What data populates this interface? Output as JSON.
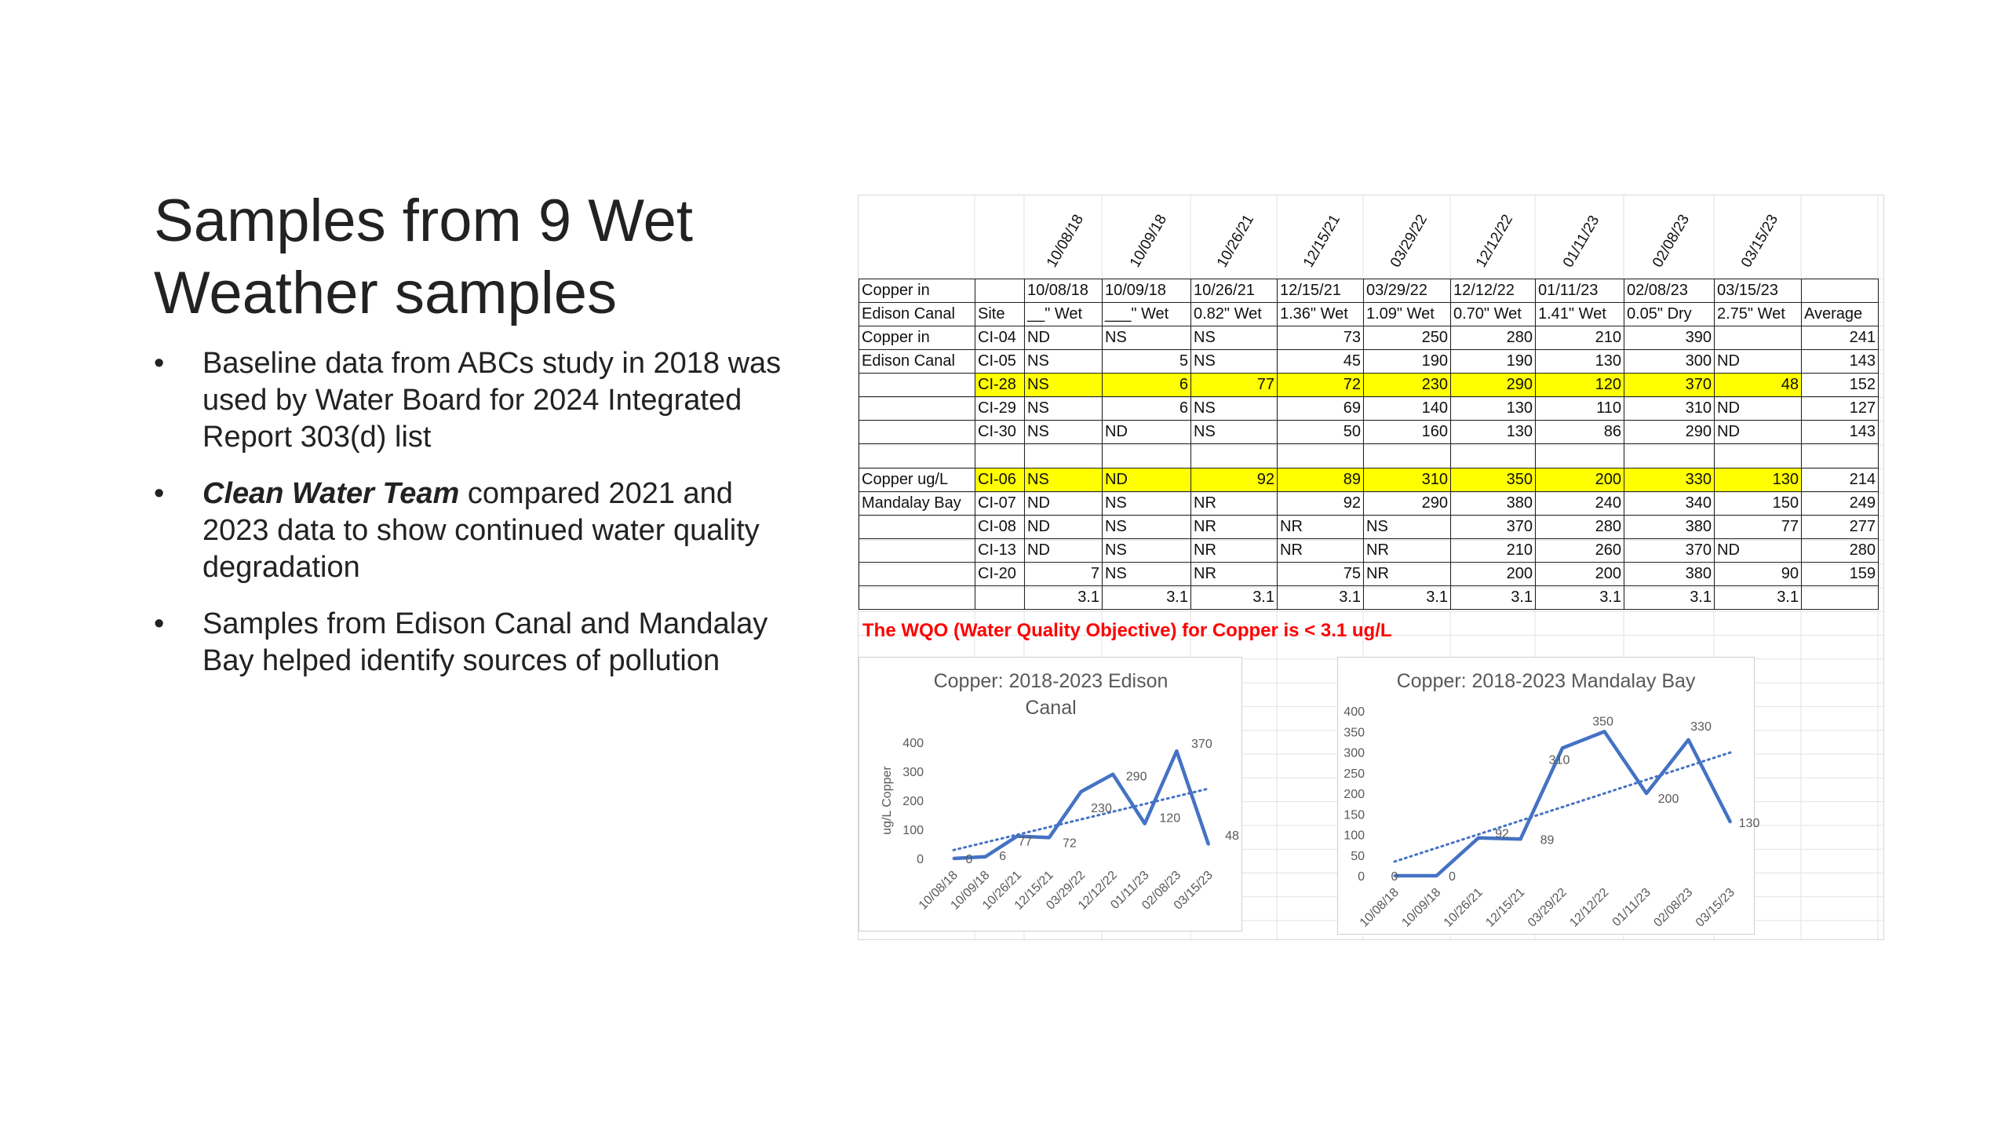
{
  "slide": {
    "title_line1": "Samples from 9 Wet",
    "title_line2": "Weather samples",
    "bullets": [
      {
        "dot": "•",
        "pre": "",
        "bold": "",
        "text": "Baseline data from ABCs study in 2018 was used by Water Board for 2024 Integrated Report 303(d) list"
      },
      {
        "dot": "•",
        "pre": "",
        "bold": "Clean Water Team",
        "text": " compared 2021 and 2023 data to show continued water quality degradation"
      },
      {
        "dot": "•",
        "pre": "",
        "bold": "",
        "text": "Samples from Edison Canal and Mandalay Bay helped identify sources of pollution"
      }
    ]
  },
  "table": {
    "rotated_dates": [
      "10/08/18",
      "10/09/18",
      "10/26/21",
      "12/15/21",
      "03/29/22",
      "12/12/22",
      "01/11/23",
      "02/08/23",
      "03/15/23"
    ],
    "header1": [
      "Copper in",
      "",
      "10/08/18",
      "10/09/18",
      "10/26/21",
      "12/15/21",
      "03/29/22",
      "12/12/22",
      "01/11/23",
      "02/08/23",
      "03/15/23",
      ""
    ],
    "header2": [
      "Edison Canal",
      "Site",
      "__\" Wet",
      "___\" Wet",
      "0.82\" Wet",
      "1.36\" Wet",
      "1.09\" Wet",
      "0.70\" Wet",
      "1.41\" Wet",
      "0.05\" Dry",
      "2.75\" Wet",
      "Average"
    ],
    "rows": [
      {
        "hl": false,
        "cells": [
          "Copper in",
          "CI-04",
          "ND",
          "NS",
          "NS",
          "73",
          "250",
          "280",
          "210",
          "390",
          "",
          "241"
        ]
      },
      {
        "hl": false,
        "cells": [
          "Edison Canal",
          "CI-05",
          "NS",
          "5",
          "NS",
          "45",
          "190",
          "190",
          "130",
          "300",
          "ND",
          "143"
        ]
      },
      {
        "hl": true,
        "cells": [
          "",
          "CI-28",
          "NS",
          "6",
          "77",
          "72",
          "230",
          "290",
          "120",
          "370",
          "48",
          "152"
        ]
      },
      {
        "hl": false,
        "cells": [
          "",
          "CI-29",
          "NS",
          "6",
          "NS",
          "69",
          "140",
          "130",
          "110",
          "310",
          "ND",
          "127"
        ]
      },
      {
        "hl": false,
        "cells": [
          "",
          "CI-30",
          "NS",
          "ND",
          "NS",
          "50",
          "160",
          "130",
          "86",
          "290",
          "ND",
          "143"
        ]
      },
      {
        "blank": true,
        "hl": false,
        "cells": [
          "",
          "",
          "",
          "",
          "",
          "",
          "",
          "",
          "",
          "",
          "",
          ""
        ]
      },
      {
        "hl": true,
        "cells": [
          "Copper ug/L",
          "CI-06",
          "NS",
          "ND",
          "92",
          "89",
          "310",
          "350",
          "200",
          "330",
          "130",
          "214"
        ]
      },
      {
        "hl": false,
        "cells": [
          "Mandalay Bay",
          "CI-07",
          "ND",
          "NS",
          "NR",
          "92",
          "290",
          "380",
          "240",
          "340",
          "150",
          "249"
        ]
      },
      {
        "hl": false,
        "cells": [
          "",
          "CI-08",
          "ND",
          "NS",
          "NR",
          "NR",
          "NS",
          "370",
          "280",
          "380",
          "77",
          "277"
        ]
      },
      {
        "hl": false,
        "cells": [
          "",
          "CI-13",
          "ND",
          "NS",
          "NR",
          "NR",
          "NR",
          "210",
          "260",
          "370",
          "ND",
          "280"
        ]
      },
      {
        "hl": false,
        "cells": [
          "",
          "CI-20",
          "7",
          "NS",
          "NR",
          "75",
          "NR",
          "200",
          "200",
          "380",
          "90",
          "159"
        ]
      },
      {
        "hl": false,
        "cells": [
          "",
          "",
          "3.1",
          "3.1",
          "3.1",
          "3.1",
          "3.1",
          "3.1",
          "3.1",
          "3.1",
          "3.1",
          ""
        ]
      }
    ],
    "wqo_note": "The WQO (Water Quality Objective) for Copper is < 3.1 ug/L"
  },
  "chart_data": [
    {
      "type": "line",
      "title": "Copper:  2018-2023  Edison Canal",
      "title_lines": [
        "Copper:  2018-2023  Edison",
        "Canal"
      ],
      "ylabel": "ug/L Copper",
      "xlabel": "",
      "categories": [
        "10/08/18",
        "10/09/18",
        "10/26/21",
        "12/15/21",
        "03/29/22",
        "12/12/22",
        "01/11/23",
        "02/08/23",
        "03/15/23"
      ],
      "values": [
        0,
        6,
        77,
        72,
        230,
        290,
        120,
        370,
        48
      ],
      "labels": [
        "0",
        "6",
        "77",
        "72",
        "230",
        "290",
        "120",
        "370",
        "48"
      ],
      "yticks": [
        0,
        100,
        200,
        300,
        400
      ],
      "ylim": [
        0,
        400
      ],
      "trendline": "linear dotted",
      "line_color": "#4472c4"
    },
    {
      "type": "line",
      "title": "Copper:  2018-2023 Mandalay Bay",
      "title_lines": [
        "Copper:  2018-2023 Mandalay Bay"
      ],
      "ylabel": "",
      "xlabel": "",
      "categories": [
        "10/08/18",
        "10/09/18",
        "10/26/21",
        "12/15/21",
        "03/29/22",
        "12/12/22",
        "01/11/23",
        "02/08/23",
        "03/15/23"
      ],
      "values": [
        0,
        0,
        92,
        89,
        310,
        350,
        200,
        330,
        130
      ],
      "labels": [
        "0",
        "0",
        "92",
        "89",
        "310",
        "350",
        "200",
        "330",
        "130"
      ],
      "yticks": [
        0,
        50,
        100,
        150,
        200,
        250,
        300,
        350,
        400
      ],
      "ylim": [
        0,
        400
      ],
      "trendline": "linear dotted",
      "line_color": "#4472c4"
    }
  ]
}
